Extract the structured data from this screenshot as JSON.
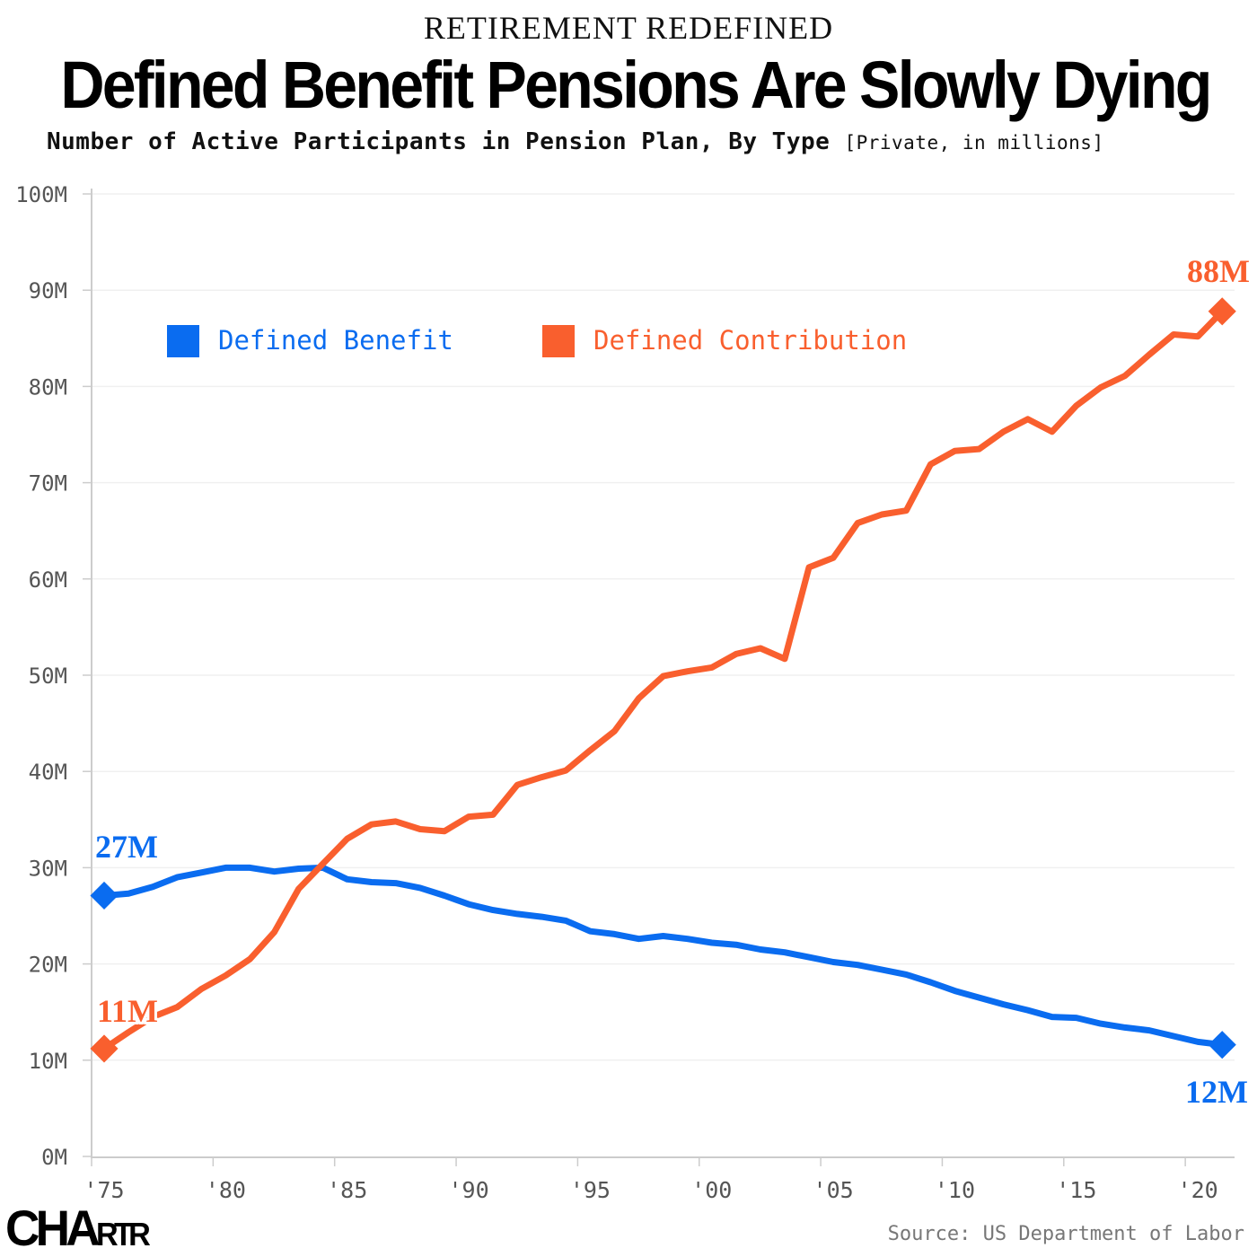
{
  "header": {
    "kicker": "RETIREMENT REDEFINED",
    "title": "Defined Benefit Pensions Are Slowly Dying",
    "subtitle": "Number of Active Participants in Pension Plan, By Type",
    "subtitle_note": "[Private, in millions]"
  },
  "footer": {
    "logo": "CHARTR",
    "source": "Source: US Department of Labor"
  },
  "chart_data": {
    "type": "line",
    "title": "Defined Benefit Pensions Are Slowly Dying",
    "xlabel": "",
    "ylabel": "",
    "ylim": [
      0,
      100
    ],
    "xlim": [
      1975,
      2021
    ],
    "y_ticks": [
      "0M",
      "10M",
      "20M",
      "30M",
      "40M",
      "50M",
      "60M",
      "70M",
      "80M",
      "90M",
      "100M"
    ],
    "x_ticks": [
      {
        "year": 1975,
        "label": "'75"
      },
      {
        "year": 1980,
        "label": "'80"
      },
      {
        "year": 1985,
        "label": "'85"
      },
      {
        "year": 1990,
        "label": "'90"
      },
      {
        "year": 1995,
        "label": "'95"
      },
      {
        "year": 2000,
        "label": "'00"
      },
      {
        "year": 2005,
        "label": "'05"
      },
      {
        "year": 2010,
        "label": "'10"
      },
      {
        "year": 2015,
        "label": "'15"
      },
      {
        "year": 2020,
        "label": "'20"
      }
    ],
    "grid": true,
    "legend_position": "top-left",
    "x": [
      1975,
      1976,
      1977,
      1978,
      1979,
      1980,
      1981,
      1982,
      1983,
      1984,
      1985,
      1986,
      1987,
      1988,
      1989,
      1990,
      1991,
      1992,
      1993,
      1994,
      1995,
      1996,
      1997,
      1998,
      1999,
      2000,
      2001,
      2002,
      2003,
      2004,
      2005,
      2006,
      2007,
      2008,
      2009,
      2010,
      2011,
      2012,
      2013,
      2014,
      2015,
      2016,
      2017,
      2018,
      2019,
      2020,
      2021
    ],
    "series": [
      {
        "name": "Defined Benefit",
        "color": "#0a6cf0",
        "start_label": "27M",
        "end_label": "12M",
        "values": [
          27.1,
          27.3,
          28.0,
          29.0,
          29.5,
          30.0,
          30.0,
          29.6,
          29.9,
          30.0,
          28.8,
          28.5,
          28.4,
          27.9,
          27.1,
          26.2,
          25.6,
          25.2,
          24.9,
          24.5,
          23.4,
          23.1,
          22.6,
          22.9,
          22.6,
          22.2,
          22.0,
          21.5,
          21.2,
          20.7,
          20.2,
          19.9,
          19.4,
          18.9,
          18.1,
          17.2,
          16.5,
          15.8,
          15.2,
          14.5,
          14.4,
          13.8,
          13.4,
          13.1,
          12.5,
          11.9,
          11.6
        ]
      },
      {
        "name": "Defined Contribution",
        "color": "#f95f2e",
        "start_label": "11M",
        "end_label": "88M",
        "values": [
          11.2,
          12.9,
          14.5,
          15.5,
          17.4,
          18.8,
          20.5,
          23.3,
          27.8,
          30.4,
          33.0,
          34.5,
          34.8,
          34.0,
          33.8,
          35.3,
          35.5,
          38.6,
          39.4,
          40.1,
          42.2,
          44.2,
          47.6,
          49.9,
          50.4,
          50.8,
          52.2,
          52.8,
          51.7,
          61.2,
          62.2,
          65.8,
          66.7,
          67.1,
          71.9,
          73.3,
          73.5,
          75.3,
          76.6,
          75.3,
          78.0,
          79.9,
          81.1,
          83.3,
          85.4,
          85.2,
          87.8
        ]
      }
    ]
  }
}
